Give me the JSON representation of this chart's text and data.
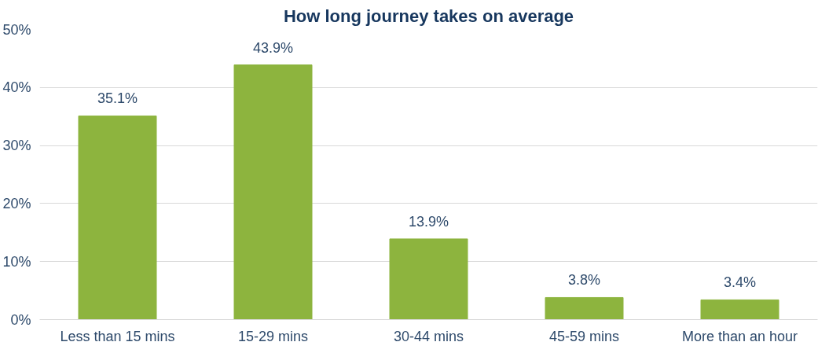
{
  "chart_data": {
    "type": "bar",
    "title": "How long journey takes on average",
    "categories": [
      "Less than 15 mins",
      "15-29 mins",
      "30-44 mins",
      "45-59 mins",
      "More than an hour"
    ],
    "values": [
      35.1,
      43.9,
      13.9,
      3.8,
      3.4
    ],
    "value_labels": [
      "35.1%",
      "43.9%",
      "13.9%",
      "3.8%",
      "3.4%"
    ],
    "color": "#8db43e",
    "ylim": [
      0,
      50
    ],
    "yticks": [
      {
        "value": 0,
        "label": "0%"
      },
      {
        "value": 10,
        "label": "10%"
      },
      {
        "value": 20,
        "label": "20%"
      },
      {
        "value": 30,
        "label": "30%"
      },
      {
        "value": 40,
        "label": "40%"
      },
      {
        "value": 50,
        "label": "50%"
      }
    ],
    "grid": "y"
  }
}
